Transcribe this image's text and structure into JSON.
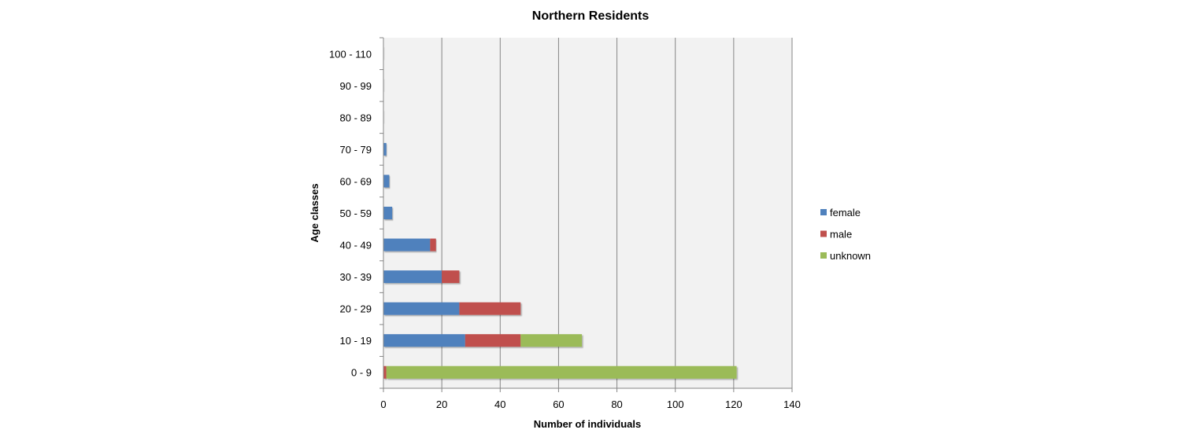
{
  "chart_data": {
    "type": "bar",
    "orientation": "horizontal",
    "stacked": true,
    "title": "Northern Residents",
    "xlabel": "Number of individuals",
    "ylabel": "Age classes",
    "xlim": [
      0,
      140
    ],
    "x_ticks": [
      0,
      20,
      40,
      60,
      80,
      100,
      120,
      140
    ],
    "grid": true,
    "legend_position": "right",
    "categories": [
      "0 - 9",
      "10 - 19",
      "20 - 29",
      "30 - 39",
      "40 - 49",
      "50 - 59",
      "60 - 69",
      "70 - 79",
      "80 - 89",
      "90 - 99",
      "100 - 110"
    ],
    "series": [
      {
        "name": "female",
        "color": "#4F81BD",
        "values": [
          0,
          28,
          26,
          20,
          16,
          3,
          2,
          1,
          0,
          0,
          0
        ]
      },
      {
        "name": "male",
        "color": "#C0504D",
        "values": [
          1,
          19,
          21,
          6,
          2,
          0,
          0,
          0,
          0,
          0,
          0
        ]
      },
      {
        "name": "unknown",
        "color": "#9BBB59",
        "values": [
          120,
          21,
          0,
          0,
          0,
          0,
          0,
          0,
          0,
          0,
          0
        ]
      }
    ]
  }
}
